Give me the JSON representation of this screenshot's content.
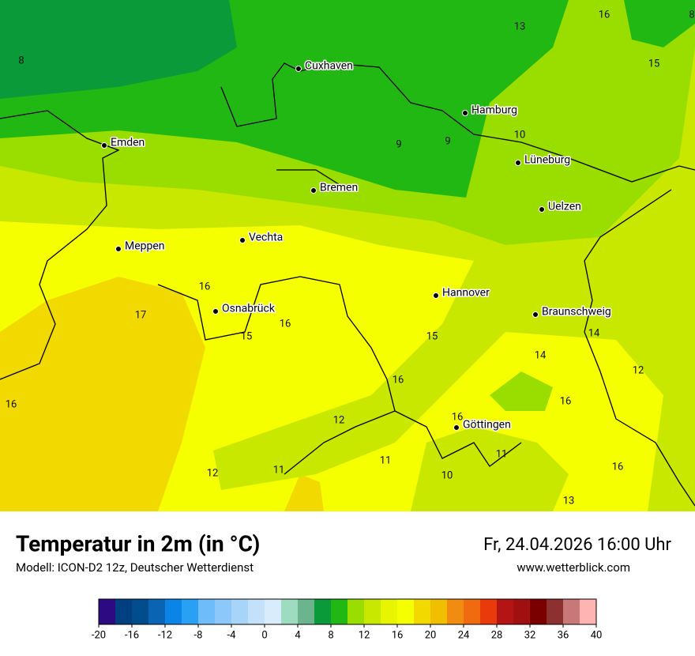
{
  "header": {
    "title": "Temperatur in 2m (in °C)",
    "model": "Modell: ICON-D2 12z, Deutscher Wetterdienst",
    "date": "Fr, 24.04.2026 16:00 Uhr",
    "website": "www.wetterblick.com"
  },
  "cities": [
    "Cuxhaven",
    "Hamburg",
    "Emden",
    "Lüneburg",
    "Bremen",
    "Uelzen",
    "Vechta",
    "Meppen",
    "Hannover",
    "Osnabrück",
    "Braunschweig",
    "Göttingen"
  ],
  "map_values": [
    13,
    16,
    8,
    15,
    8,
    9,
    9,
    10,
    16,
    17,
    16,
    15,
    15,
    14,
    14,
    12,
    16,
    16,
    16,
    16,
    12,
    11,
    11,
    11,
    12,
    10,
    16,
    13
  ],
  "colorbar": {
    "ticks": [
      -20,
      -16,
      -12,
      -8,
      -4,
      0,
      4,
      8,
      12,
      16,
      20,
      24,
      28,
      32,
      36,
      40
    ],
    "colors": [
      "#2d0a82",
      "#003f80",
      "#004c8c",
      "#0a64b4",
      "#0a84e6",
      "#2aa0f5",
      "#6fbcfa",
      "#8cc8fa",
      "#a8d4fa",
      "#c4e0fa",
      "#d8ecfc",
      "#9ddcbe",
      "#6cb48e",
      "#0a9a3a",
      "#22b814",
      "#9ade00",
      "#c8e800",
      "#e8f500",
      "#f5ff00",
      "#f2d900",
      "#f2be00",
      "#f28c10",
      "#f06a10",
      "#e83a0a",
      "#b41414",
      "#a01010",
      "#7a0000",
      "#8c3030",
      "#c87878",
      "#ffb4b4"
    ]
  }
}
